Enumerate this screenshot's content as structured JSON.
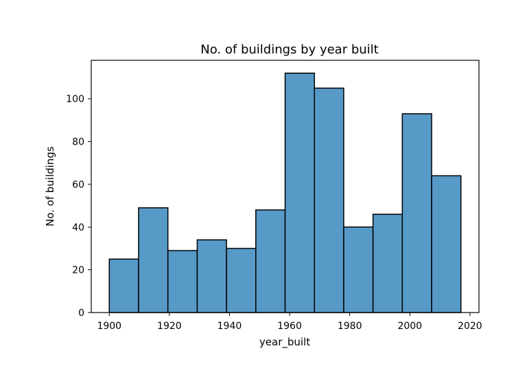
{
  "chart_data": {
    "type": "bar",
    "title": "No. of buildings by year built",
    "xlabel": "year_built",
    "ylabel": "No. of buildings",
    "xlim": [
      1894,
      2023
    ],
    "ylim": [
      0,
      118
    ],
    "x_ticks": [
      1900,
      1920,
      1940,
      1960,
      1980,
      2000,
      2020
    ],
    "y_ticks": [
      0,
      20,
      40,
      60,
      80,
      100
    ],
    "bin_edges": [
      1900,
      1909.75,
      1919.5,
      1929.25,
      1939,
      1948.75,
      1958.5,
      1968.25,
      1978,
      1987.75,
      1997.5,
      2007.25,
      2017
    ],
    "values": [
      25,
      49,
      29,
      34,
      30,
      48,
      112,
      105,
      40,
      46,
      93,
      64
    ],
    "bar_color": "#5799c7",
    "edge_color": "#000000",
    "grid": false
  }
}
